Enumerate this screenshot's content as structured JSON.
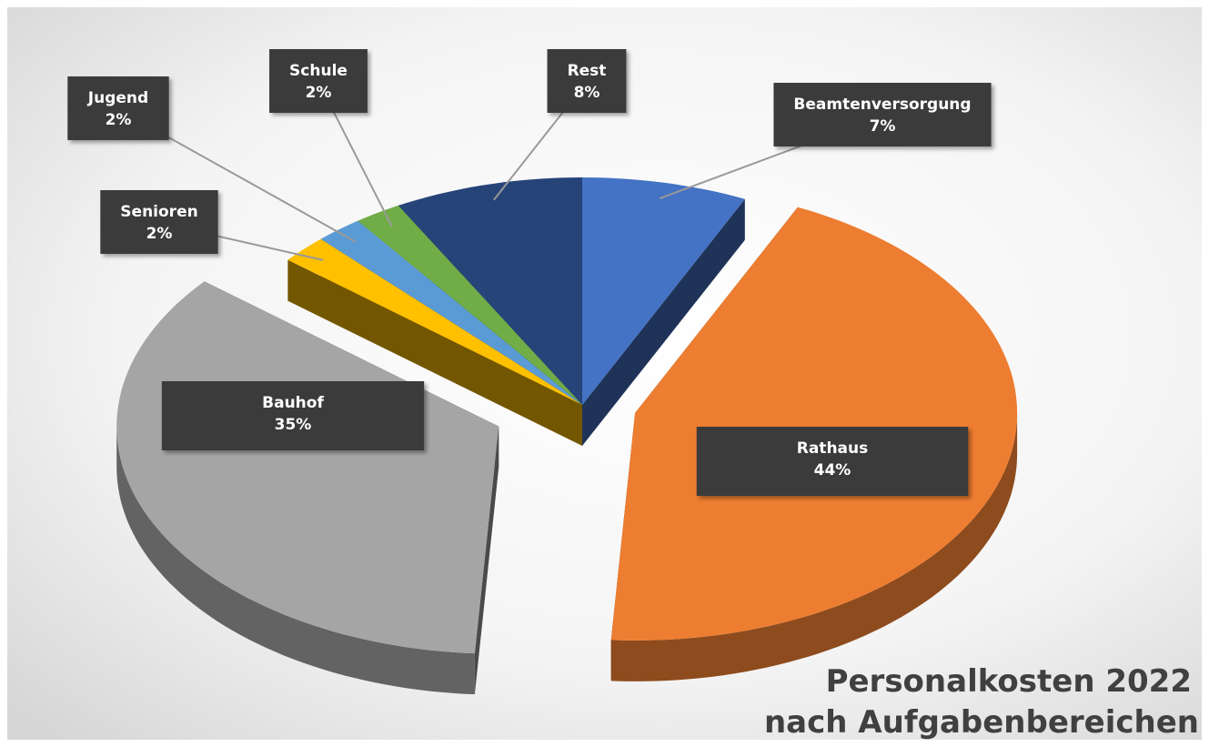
{
  "chart_data": {
    "type": "pie3d",
    "title": [
      "Personalkosten 2022",
      "nach Aufgabenbereichen"
    ],
    "categories": [
      "Beamtenversorgung",
      "Rathaus",
      "Bauhof",
      "Senioren",
      "Jugend",
      "Schule",
      "Rest"
    ],
    "values": [
      7,
      44,
      35,
      2,
      2,
      2,
      8
    ],
    "value_labels": [
      "7%",
      "44%",
      "35%",
      "2%",
      "2%",
      "2%",
      "8%"
    ],
    "colors": [
      "#4472c4",
      "#ed7d31",
      "#a5a5a5",
      "#ffc000",
      "#5b9bd5",
      "#70ad47",
      "#264478"
    ]
  }
}
